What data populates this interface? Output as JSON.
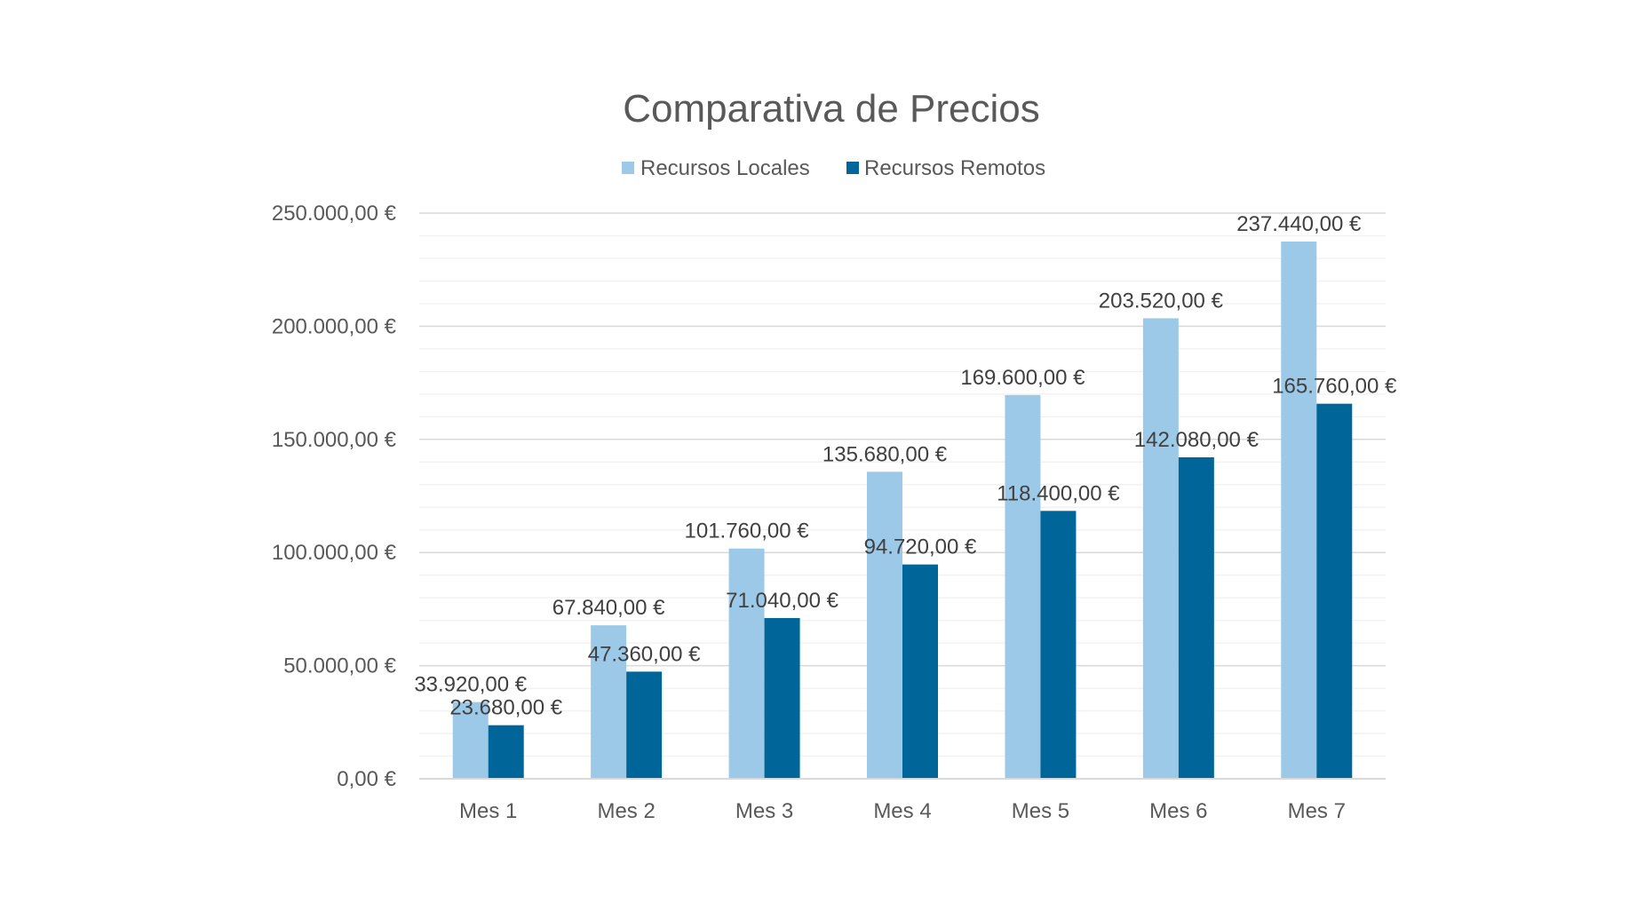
{
  "chart_data": {
    "type": "bar",
    "title": "Comparativa de Precios",
    "categories": [
      "Mes 1",
      "Mes 2",
      "Mes 3",
      "Mes 4",
      "Mes 5",
      "Mes 6",
      "Mes 7"
    ],
    "series": [
      {
        "name": "Recursos Locales",
        "color": "#9DC9E9",
        "values": [
          33920,
          67840,
          101760,
          135680,
          169600,
          203520,
          237440
        ],
        "labels": [
          "33.920,00 €",
          "67.840,00 €",
          "101.760,00 €",
          "135.680,00 €",
          "169.600,00 €",
          "203.520,00 €",
          "237.440,00 €"
        ]
      },
      {
        "name": "Recursos Remotos",
        "color": "#006699",
        "values": [
          23680,
          47360,
          71040,
          94720,
          118400,
          142080,
          165760
        ],
        "labels": [
          "23.680,00 €",
          "47.360,00 €",
          "71.040,00 €",
          "94.720,00 €",
          "118.400,00 €",
          "142.080,00 €",
          "165.760,00 €"
        ]
      }
    ],
    "ylim": [
      0,
      250000
    ],
    "yticks": [
      0,
      50000,
      100000,
      150000,
      200000,
      250000
    ],
    "ytick_labels": [
      "0,00 €",
      "50.000,00 €",
      "100.000,00 €",
      "150.000,00 €",
      "200.000,00 €",
      "250.000,00 €"
    ],
    "minor_step": 10000,
    "grid": true,
    "legend_position": "top",
    "colors": {
      "text": "#595959",
      "data_label": "#404040",
      "major_grid": "#D9D9D9",
      "minor_grid": "#F2F2F2"
    }
  }
}
